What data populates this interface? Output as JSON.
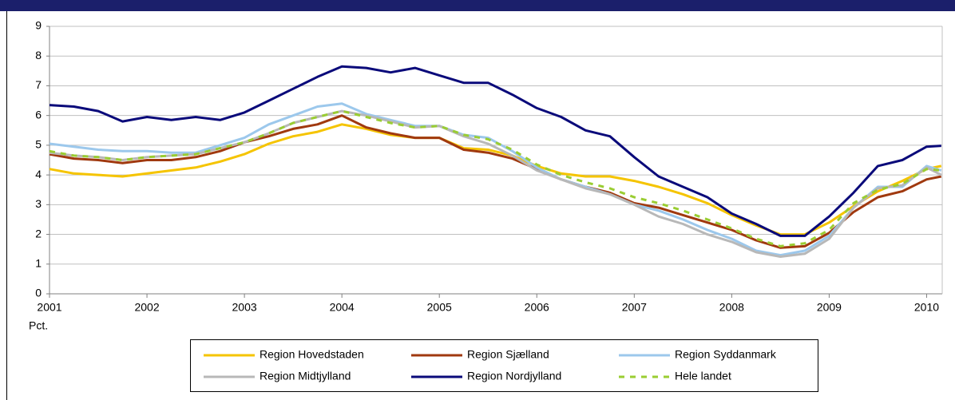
{
  "chart_data": {
    "type": "line",
    "y_label": "Pct.",
    "x": [
      2001,
      2001.25,
      2001.5,
      2001.75,
      2002,
      2002.25,
      2002.5,
      2002.75,
      2003,
      2003.25,
      2003.5,
      2003.75,
      2004,
      2004.25,
      2004.5,
      2004.75,
      2005,
      2005.25,
      2005.5,
      2005.75,
      2006,
      2006.25,
      2006.5,
      2006.75,
      2007,
      2007.25,
      2007.5,
      2007.75,
      2008,
      2008.25,
      2008.5,
      2008.75,
      2009,
      2009.25,
      2009.5,
      2009.75,
      2010,
      2010.15
    ],
    "xlim": [
      2001,
      2010.16
    ],
    "xticks": [
      2001,
      2002,
      2003,
      2004,
      2005,
      2006,
      2007,
      2008,
      2009,
      2010
    ],
    "ylim": [
      0,
      9
    ],
    "yticks": [
      0,
      1,
      2,
      3,
      4,
      5,
      6,
      7,
      8,
      9
    ],
    "grid": true,
    "legend": "bottom",
    "series": [
      {
        "name": "Region Hovedstaden",
        "color": "#f5c400",
        "dashed": false,
        "values": [
          4.2,
          4.05,
          4.0,
          3.95,
          4.05,
          4.15,
          4.25,
          4.45,
          4.7,
          5.05,
          5.3,
          5.45,
          5.7,
          5.55,
          5.35,
          5.25,
          5.25,
          4.9,
          4.85,
          4.65,
          4.3,
          4.05,
          3.95,
          3.95,
          3.8,
          3.6,
          3.35,
          3.05,
          2.65,
          2.3,
          2.0,
          2.0,
          2.4,
          2.95,
          3.45,
          3.8,
          4.2,
          4.3
        ]
      },
      {
        "name": "Region Sjælland",
        "color": "#a0390f",
        "dashed": false,
        "values": [
          4.7,
          4.55,
          4.5,
          4.4,
          4.5,
          4.5,
          4.6,
          4.8,
          5.1,
          5.3,
          5.55,
          5.7,
          6.0,
          5.6,
          5.4,
          5.25,
          5.25,
          4.85,
          4.75,
          4.55,
          4.2,
          3.85,
          3.6,
          3.4,
          3.05,
          2.9,
          2.65,
          2.4,
          2.15,
          1.8,
          1.55,
          1.6,
          2.05,
          2.75,
          3.25,
          3.45,
          3.85,
          3.95
        ]
      },
      {
        "name": "Region Syddanmark",
        "color": "#9cc8ec",
        "dashed": false,
        "values": [
          5.05,
          4.95,
          4.85,
          4.8,
          4.8,
          4.75,
          4.75,
          5.0,
          5.25,
          5.7,
          6.0,
          6.3,
          6.4,
          6.05,
          5.85,
          5.65,
          5.65,
          5.35,
          5.25,
          4.8,
          4.25,
          3.85,
          3.6,
          3.35,
          3.0,
          2.8,
          2.5,
          2.15,
          1.85,
          1.45,
          1.3,
          1.45,
          1.95,
          2.9,
          3.6,
          3.6,
          4.3,
          4.15
        ]
      },
      {
        "name": "Region Midtjylland",
        "color": "#b8b8b8",
        "dashed": false,
        "values": [
          4.75,
          4.65,
          4.6,
          4.5,
          4.6,
          4.65,
          4.7,
          4.9,
          5.1,
          5.4,
          5.75,
          5.95,
          6.15,
          6.0,
          5.8,
          5.6,
          5.65,
          5.3,
          5.05,
          4.65,
          4.15,
          3.85,
          3.55,
          3.35,
          3.0,
          2.6,
          2.35,
          2.0,
          1.75,
          1.4,
          1.25,
          1.35,
          1.85,
          2.9,
          3.55,
          3.65,
          4.25,
          4.0
        ]
      },
      {
        "name": "Region Nordjylland",
        "color": "#0a0a7a",
        "dashed": false,
        "values": [
          6.35,
          6.3,
          6.15,
          5.8,
          5.95,
          5.85,
          5.95,
          5.85,
          6.1,
          6.5,
          6.9,
          7.3,
          7.65,
          7.6,
          7.45,
          7.6,
          7.35,
          7.1,
          7.1,
          6.7,
          6.25,
          5.95,
          5.5,
          5.3,
          4.6,
          3.95,
          3.6,
          3.25,
          2.7,
          2.35,
          1.95,
          1.95,
          2.6,
          3.4,
          4.3,
          4.5,
          4.95,
          4.98
        ]
      },
      {
        "name": "Hele landet",
        "color": "#9acd32",
        "dashed": true,
        "values": [
          4.8,
          4.65,
          4.6,
          4.5,
          4.6,
          4.65,
          4.7,
          4.9,
          5.1,
          5.4,
          5.75,
          5.95,
          6.15,
          5.95,
          5.75,
          5.6,
          5.65,
          5.35,
          5.2,
          4.85,
          4.35,
          4.0,
          3.75,
          3.55,
          3.25,
          3.05,
          2.8,
          2.5,
          2.2,
          1.85,
          1.6,
          1.7,
          2.15,
          3.05,
          3.5,
          3.7,
          4.2,
          4.15
        ]
      }
    ]
  }
}
